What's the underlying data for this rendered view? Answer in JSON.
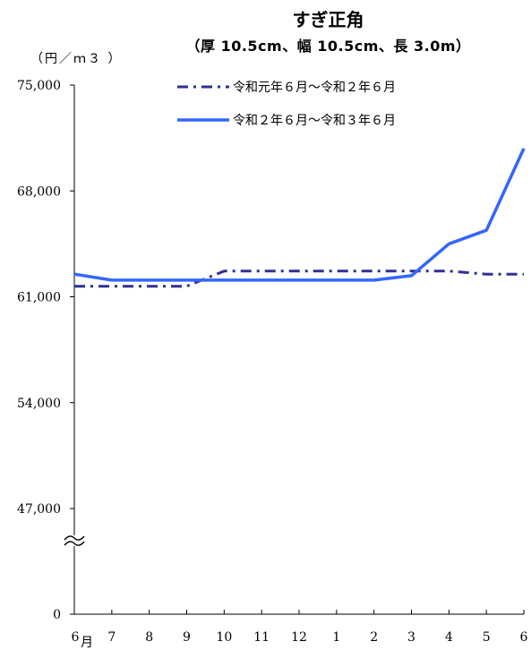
{
  "chart_data": {
    "type": "line",
    "title": "すぎ正角",
    "subtitle": "（厚 10.5cm、幅 10.5cm、長 3.0m）",
    "unit_label": "（円／ｍ３ ）",
    "categories": [
      "6",
      "7",
      "8",
      "9",
      "10",
      "11",
      "12",
      "1",
      "2",
      "3",
      "4",
      "5",
      "6"
    ],
    "first_month_suffix": "月",
    "y_ticks": [
      0,
      47000,
      54000,
      61000,
      68000,
      75000
    ],
    "y_tick_labels": [
      "0",
      "47,000",
      "54,000",
      "61,000",
      "68,000",
      "75,000"
    ],
    "ylim": [
      0,
      75000
    ],
    "axis_break": true,
    "series": [
      {
        "name": "令和元年６月～令和２年６月",
        "style": "dash-dot",
        "color": "#2e3192",
        "values": [
          61700,
          61700,
          61700,
          61700,
          62700,
          62700,
          62700,
          62700,
          62700,
          62700,
          62700,
          62500,
          62500
        ]
      },
      {
        "name": "令和２年６月～令和３年６月",
        "style": "solid",
        "color": "#3366ff",
        "values": [
          62500,
          62100,
          62100,
          62100,
          62100,
          62100,
          62100,
          62100,
          62100,
          62400,
          64500,
          65400,
          70800
        ]
      }
    ],
    "legend_position": "top-right"
  }
}
